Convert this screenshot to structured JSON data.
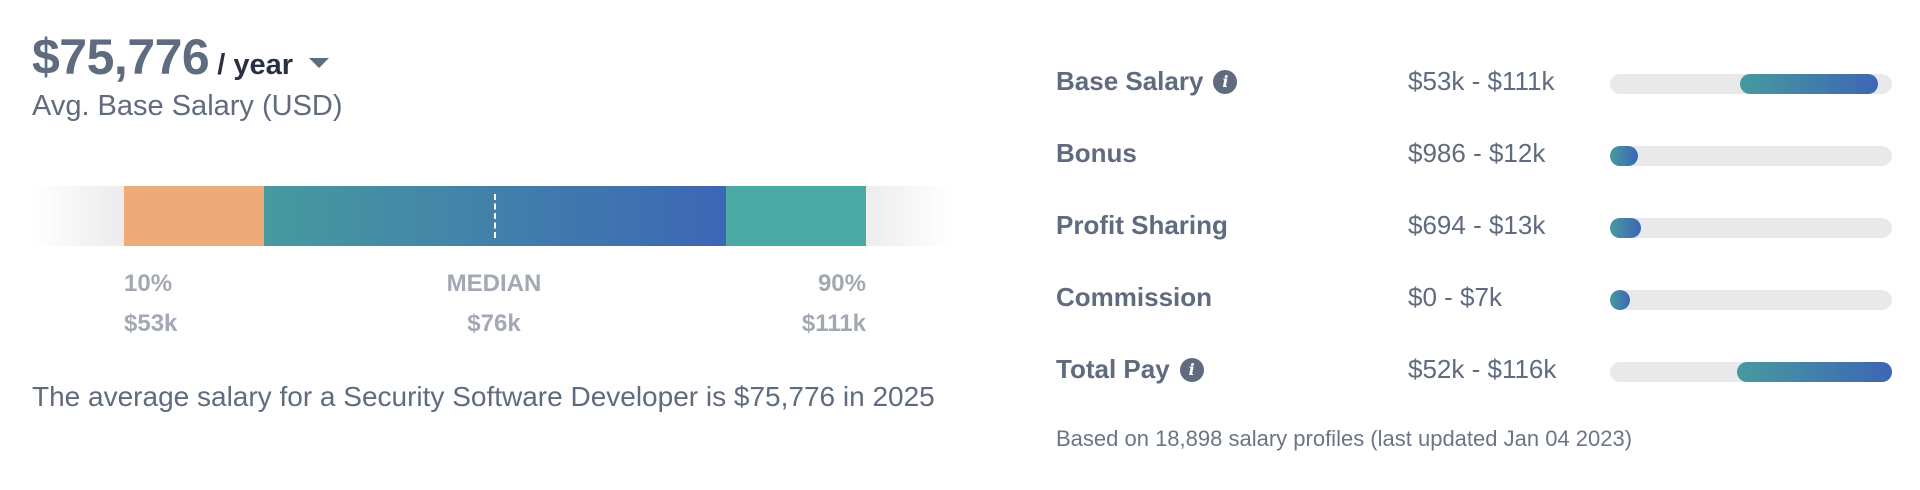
{
  "headline": {
    "amount": "$75,776",
    "period": "/ year",
    "sub_label": "Avg. Base Salary (USD)"
  },
  "distribution": {
    "low": {
      "label": "10%",
      "value": "$53k"
    },
    "median": {
      "label": "MEDIAN",
      "value": "$76k"
    },
    "high": {
      "label": "90%",
      "value": "$111k"
    },
    "colors": {
      "low": "#eeab79",
      "mid_start": "#479a9f",
      "mid_end": "#3d66b5",
      "high": "#4baaa4"
    }
  },
  "summary": "The average salary for a Security Software Developer is $75,776 in 2025",
  "pay_breakdown": {
    "rows": [
      {
        "label": "Base Salary",
        "range": "$53k - $111k",
        "has_info": true,
        "bar_start": 0.46,
        "bar_end": 0.95
      },
      {
        "label": "Bonus",
        "range": "$986 - $12k",
        "has_info": false,
        "bar_start": 0.0,
        "bar_end": 0.1
      },
      {
        "label": "Profit Sharing",
        "range": "$694 - $13k",
        "has_info": false,
        "bar_start": 0.0,
        "bar_end": 0.11
      },
      {
        "label": "Commission",
        "range": "$0 - $7k",
        "has_info": false,
        "bar_start": 0.0,
        "bar_end": 0.06
      },
      {
        "label": "Total Pay",
        "range": "$52k - $116k",
        "has_info": true,
        "bar_start": 0.45,
        "bar_end": 1.0
      }
    ],
    "note": "Based on 18,898 salary profiles (last updated Jan 04 2023)"
  },
  "icons": {
    "period_dropdown": "caret-down-icon",
    "info": "info-icon"
  }
}
